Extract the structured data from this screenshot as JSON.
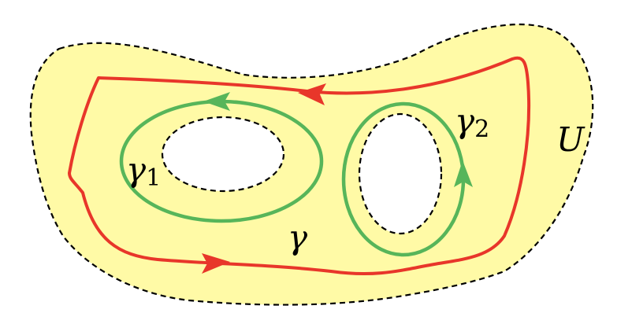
{
  "labels": {
    "region": "U",
    "outer_curve": "γ",
    "curve_1_symbol": "γ",
    "curve_1_subscript": "1",
    "curve_2_symbol": "γ",
    "curve_2_subscript": "2"
  },
  "colors": {
    "region_fill": "#FFFAA6",
    "boundary": "#000000",
    "hole_fill": "#FFFFFF",
    "outer_curve": "#E8362A",
    "inner_curves": "#57B55A"
  }
}
